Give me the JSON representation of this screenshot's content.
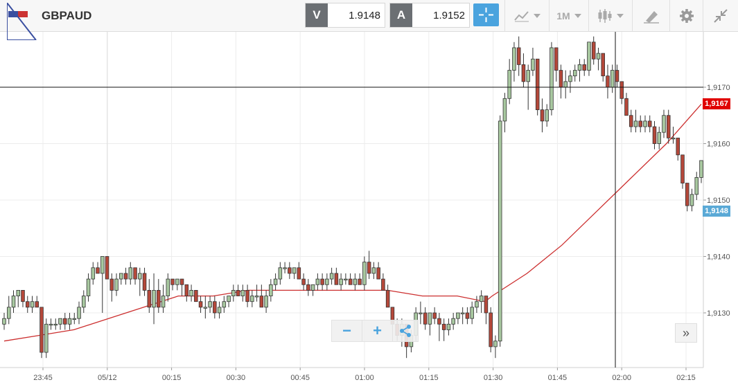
{
  "toolbar": {
    "symbol": "GBPAUD",
    "bid_tag": "V",
    "bid_value": "1.9148",
    "ask_tag": "A",
    "ask_value": "1.9152",
    "timeframe": "1M",
    "icons": [
      "crosshair-icon",
      "indicators-icon",
      "candlestick-icon",
      "drawing-icon",
      "gear-icon",
      "collapse-icon"
    ]
  },
  "chart": {
    "y_ticks": [
      "1,9170",
      "1,9160",
      "1,9150",
      "1,9140",
      "1,9130"
    ],
    "y_tick_values": [
      1.917,
      1.916,
      1.915,
      1.914,
      1.913
    ],
    "x_ticks": [
      "23:45",
      "05/12",
      "00:15",
      "00:30",
      "00:45",
      "01:00",
      "01:15",
      "01:30",
      "01:45",
      "02:00",
      "02:15"
    ],
    "current_price_label": "1,9167",
    "current_price_value": 1.9167,
    "bid_price_label": "1,9148",
    "bid_price_value": 1.9148,
    "crosshair_price": 1.917,
    "colors": {
      "up": "#a8c8a0",
      "down": "#b5483a",
      "ma": "#cc2e2e",
      "price_red": "#e00000",
      "price_blue": "#5aa9d6"
    },
    "candles": [
      [
        1.9128,
        1.913,
        1.9127,
        1.9129
      ],
      [
        1.9129,
        1.9133,
        1.9128,
        1.9131
      ],
      [
        1.9131,
        1.9134,
        1.913,
        1.9133
      ],
      [
        1.9133,
        1.9134,
        1.9131,
        1.9134
      ],
      [
        1.9134,
        1.9134,
        1.9131,
        1.9132
      ],
      [
        1.9132,
        1.9133,
        1.913,
        1.9131
      ],
      [
        1.9131,
        1.9133,
        1.913,
        1.9132
      ],
      [
        1.9132,
        1.9133,
        1.9131,
        1.9131
      ],
      [
        1.9131,
        1.9131,
        1.9122,
        1.9123
      ],
      [
        1.9123,
        1.9129,
        1.9122,
        1.9128
      ],
      [
        1.9128,
        1.9129,
        1.9127,
        1.9128
      ],
      [
        1.9128,
        1.9129,
        1.9127,
        1.9128
      ],
      [
        1.9128,
        1.9129,
        1.9127,
        1.9129
      ],
      [
        1.9129,
        1.913,
        1.9127,
        1.9128
      ],
      [
        1.9128,
        1.913,
        1.9127,
        1.9129
      ],
      [
        1.9129,
        1.913,
        1.9128,
        1.9129
      ],
      [
        1.9129,
        1.9132,
        1.9128,
        1.9131
      ],
      [
        1.9131,
        1.9134,
        1.913,
        1.9133
      ],
      [
        1.9133,
        1.9137,
        1.9132,
        1.9136
      ],
      [
        1.9136,
        1.9139,
        1.9135,
        1.9138
      ],
      [
        1.9138,
        1.9139,
        1.9137,
        1.9137
      ],
      [
        1.9137,
        1.914,
        1.913,
        1.914
      ],
      [
        1.914,
        1.914,
        1.9136,
        1.9136
      ],
      [
        1.9136,
        1.9137,
        1.9132,
        1.9134
      ],
      [
        1.9134,
        1.9137,
        1.9133,
        1.9136
      ],
      [
        1.9136,
        1.9137,
        1.9135,
        1.9137
      ],
      [
        1.9137,
        1.9138,
        1.9135,
        1.9136
      ],
      [
        1.9136,
        1.9139,
        1.9135,
        1.9138
      ],
      [
        1.9138,
        1.9138,
        1.9135,
        1.9136
      ],
      [
        1.9136,
        1.9138,
        1.9133,
        1.9137
      ],
      [
        1.9137,
        1.9138,
        1.9133,
        1.9134
      ],
      [
        1.9134,
        1.9136,
        1.913,
        1.9131
      ],
      [
        1.9131,
        1.9137,
        1.9128,
        1.9134
      ],
      [
        1.9134,
        1.9136,
        1.913,
        1.9131
      ],
      [
        1.9131,
        1.9135,
        1.913,
        1.9133
      ],
      [
        1.9133,
        1.9137,
        1.9132,
        1.9136
      ],
      [
        1.9136,
        1.9136,
        1.9134,
        1.9135
      ],
      [
        1.9135,
        1.9136,
        1.9134,
        1.9136
      ],
      [
        1.9136,
        1.9136,
        1.9133,
        1.9135
      ],
      [
        1.9135,
        1.9135,
        1.9132,
        1.9133
      ],
      [
        1.9133,
        1.9135,
        1.9132,
        1.9134
      ],
      [
        1.9134,
        1.9134,
        1.9132,
        1.9132
      ],
      [
        1.9132,
        1.9133,
        1.913,
        1.9131
      ],
      [
        1.9131,
        1.9133,
        1.9129,
        1.9131
      ],
      [
        1.9131,
        1.9133,
        1.913,
        1.9132
      ],
      [
        1.9132,
        1.9133,
        1.9129,
        1.913
      ],
      [
        1.913,
        1.9132,
        1.9129,
        1.9131
      ],
      [
        1.9131,
        1.9133,
        1.913,
        1.9132
      ],
      [
        1.9132,
        1.9133,
        1.9131,
        1.9133
      ],
      [
        1.9133,
        1.9135,
        1.9132,
        1.9134
      ],
      [
        1.9134,
        1.9135,
        1.9133,
        1.9133
      ],
      [
        1.9133,
        1.9135,
        1.9132,
        1.9134
      ],
      [
        1.9134,
        1.9135,
        1.9131,
        1.9132
      ],
      [
        1.9132,
        1.9134,
        1.9131,
        1.9133
      ],
      [
        1.9133,
        1.9135,
        1.9132,
        1.9133
      ],
      [
        1.9133,
        1.9135,
        1.9131,
        1.9131
      ],
      [
        1.9131,
        1.9134,
        1.913,
        1.9133
      ],
      [
        1.9133,
        1.9136,
        1.9132,
        1.9135
      ],
      [
        1.9135,
        1.9137,
        1.9134,
        1.9136
      ],
      [
        1.9136,
        1.9139,
        1.9135,
        1.9138
      ],
      [
        1.9138,
        1.9139,
        1.9137,
        1.9138
      ],
      [
        1.9138,
        1.9139,
        1.9136,
        1.9137
      ],
      [
        1.9137,
        1.9138,
        1.9136,
        1.9138
      ],
      [
        1.9138,
        1.9139,
        1.9136,
        1.9136
      ],
      [
        1.9136,
        1.9137,
        1.9134,
        1.9135
      ],
      [
        1.9135,
        1.9136,
        1.9133,
        1.9134
      ],
      [
        1.9134,
        1.9135,
        1.9133,
        1.9135
      ],
      [
        1.9135,
        1.9137,
        1.9134,
        1.9136
      ],
      [
        1.9136,
        1.9137,
        1.9134,
        1.9135
      ],
      [
        1.9135,
        1.9137,
        1.9134,
        1.9136
      ],
      [
        1.9136,
        1.9138,
        1.9135,
        1.9137
      ],
      [
        1.9137,
        1.9138,
        1.9135,
        1.9135
      ],
      [
        1.9135,
        1.9137,
        1.9134,
        1.9136
      ],
      [
        1.9136,
        1.9137,
        1.9135,
        1.9136
      ],
      [
        1.9136,
        1.9137,
        1.9135,
        1.9135
      ],
      [
        1.9135,
        1.9137,
        1.9134,
        1.9136
      ],
      [
        1.9136,
        1.9137,
        1.9135,
        1.9135
      ],
      [
        1.9135,
        1.914,
        1.9134,
        1.9139
      ],
      [
        1.9139,
        1.9141,
        1.9136,
        1.9137
      ],
      [
        1.9137,
        1.9139,
        1.9136,
        1.9138
      ],
      [
        1.9138,
        1.9139,
        1.9136,
        1.9136
      ],
      [
        1.9136,
        1.9137,
        1.9134,
        1.9134
      ],
      [
        1.9134,
        1.9135,
        1.9131,
        1.9131
      ],
      [
        1.9131,
        1.9131,
        1.9127,
        1.9128
      ],
      [
        1.9128,
        1.9129,
        1.9125,
        1.9126
      ],
      [
        1.9126,
        1.9129,
        1.9124,
        1.9128
      ],
      [
        1.9128,
        1.9128,
        1.9122,
        1.9124
      ],
      [
        1.9124,
        1.9127,
        1.9123,
        1.9126
      ],
      [
        1.9126,
        1.9131,
        1.9125,
        1.913
      ],
      [
        1.913,
        1.9132,
        1.9128,
        1.913
      ],
      [
        1.913,
        1.9131,
        1.9127,
        1.9128
      ],
      [
        1.9128,
        1.913,
        1.9126,
        1.913
      ],
      [
        1.913,
        1.9131,
        1.9128,
        1.9129
      ],
      [
        1.9129,
        1.913,
        1.9125,
        1.9128
      ],
      [
        1.9128,
        1.9129,
        1.9125,
        1.9127
      ],
      [
        1.9127,
        1.9129,
        1.9126,
        1.9128
      ],
      [
        1.9128,
        1.913,
        1.9127,
        1.9129
      ],
      [
        1.9129,
        1.913,
        1.9128,
        1.913
      ],
      [
        1.913,
        1.9131,
        1.9128,
        1.913
      ],
      [
        1.913,
        1.9131,
        1.9128,
        1.9129
      ],
      [
        1.9129,
        1.9132,
        1.9128,
        1.9131
      ],
      [
        1.9131,
        1.9133,
        1.913,
        1.9132
      ],
      [
        1.9132,
        1.9134,
        1.913,
        1.9133
      ],
      [
        1.9133,
        1.9133,
        1.9128,
        1.913
      ],
      [
        1.913,
        1.9131,
        1.9123,
        1.9124
      ],
      [
        1.9124,
        1.9126,
        1.9122,
        1.9125
      ],
      [
        1.9125,
        1.9165,
        1.9124,
        1.9164
      ],
      [
        1.9164,
        1.9169,
        1.9162,
        1.9168
      ],
      [
        1.9168,
        1.9175,
        1.9167,
        1.9173
      ],
      [
        1.9173,
        1.9178,
        1.9171,
        1.9177
      ],
      [
        1.9177,
        1.9179,
        1.9172,
        1.9174
      ],
      [
        1.9174,
        1.9176,
        1.917,
        1.9171
      ],
      [
        1.9171,
        1.9174,
        1.9166,
        1.9173
      ],
      [
        1.9173,
        1.9177,
        1.9172,
        1.9175
      ],
      [
        1.9175,
        1.9175,
        1.9165,
        1.9166
      ],
      [
        1.9166,
        1.9168,
        1.9162,
        1.9164
      ],
      [
        1.9164,
        1.9167,
        1.9163,
        1.9166
      ],
      [
        1.9166,
        1.9178,
        1.9165,
        1.9177
      ],
      [
        1.9177,
        1.9177,
        1.9171,
        1.9173
      ],
      [
        1.9173,
        1.9174,
        1.9168,
        1.917
      ],
      [
        1.917,
        1.9173,
        1.9168,
        1.9171
      ],
      [
        1.9171,
        1.9173,
        1.9169,
        1.9172
      ],
      [
        1.9172,
        1.9174,
        1.9171,
        1.9173
      ],
      [
        1.9173,
        1.9175,
        1.9171,
        1.9174
      ],
      [
        1.9174,
        1.9175,
        1.9172,
        1.9173
      ],
      [
        1.9173,
        1.9178,
        1.9172,
        1.9178
      ],
      [
        1.9178,
        1.9179,
        1.9174,
        1.9175
      ],
      [
        1.9175,
        1.9177,
        1.9173,
        1.9176
      ],
      [
        1.9176,
        1.9176,
        1.9171,
        1.9172
      ],
      [
        1.9172,
        1.9174,
        1.9168,
        1.917
      ],
      [
        1.917,
        1.9174,
        1.9169,
        1.9173
      ],
      [
        1.9173,
        1.9174,
        1.917,
        1.9171
      ],
      [
        1.9171,
        1.9171,
        1.9167,
        1.9168
      ],
      [
        1.9168,
        1.9169,
        1.9165,
        1.9165
      ],
      [
        1.9165,
        1.9166,
        1.9162,
        1.9163
      ],
      [
        1.9163,
        1.9166,
        1.9162,
        1.9164
      ],
      [
        1.9164,
        1.9165,
        1.9162,
        1.9163
      ],
      [
        1.9163,
        1.9165,
        1.9162,
        1.9164
      ],
      [
        1.9164,
        1.9165,
        1.9162,
        1.9163
      ],
      [
        1.9163,
        1.9164,
        1.9159,
        1.916
      ],
      [
        1.916,
        1.9163,
        1.9159,
        1.9162
      ],
      [
        1.9162,
        1.9166,
        1.9161,
        1.9165
      ],
      [
        1.9165,
        1.9166,
        1.916,
        1.9161
      ],
      [
        1.9161,
        1.9163,
        1.916,
        1.9161
      ],
      [
        1.9161,
        1.9161,
        1.9157,
        1.9158
      ],
      [
        1.9158,
        1.9158,
        1.9152,
        1.9153
      ],
      [
        1.9153,
        1.9153,
        1.9148,
        1.9149
      ],
      [
        1.9149,
        1.9152,
        1.9148,
        1.9151
      ],
      [
        1.9151,
        1.9155,
        1.915,
        1.9154
      ],
      [
        1.9154,
        1.9157,
        1.9153,
        1.9157
      ]
    ],
    "ma": [
      [
        0,
        1.9125
      ],
      [
        0.05,
        1.9126
      ],
      [
        0.1,
        1.9127
      ],
      [
        0.15,
        1.9129
      ],
      [
        0.2,
        1.9131
      ],
      [
        0.25,
        1.9133
      ],
      [
        0.3,
        1.9133
      ],
      [
        0.35,
        1.9134
      ],
      [
        0.4,
        1.9134
      ],
      [
        0.45,
        1.9134
      ],
      [
        0.5,
        1.9134
      ],
      [
        0.55,
        1.9134
      ],
      [
        0.6,
        1.9133
      ],
      [
        0.65,
        1.9133
      ],
      [
        0.69,
        1.9132
      ],
      [
        0.7,
        1.9133
      ],
      [
        0.75,
        1.9137
      ],
      [
        0.8,
        1.9142
      ],
      [
        0.85,
        1.9148
      ],
      [
        0.9,
        1.9154
      ],
      [
        0.95,
        1.916
      ],
      [
        1.0,
        1.9167
      ]
    ]
  },
  "controls": {
    "zoom_out": "−",
    "zoom_in": "+",
    "scroll_end": "»"
  }
}
